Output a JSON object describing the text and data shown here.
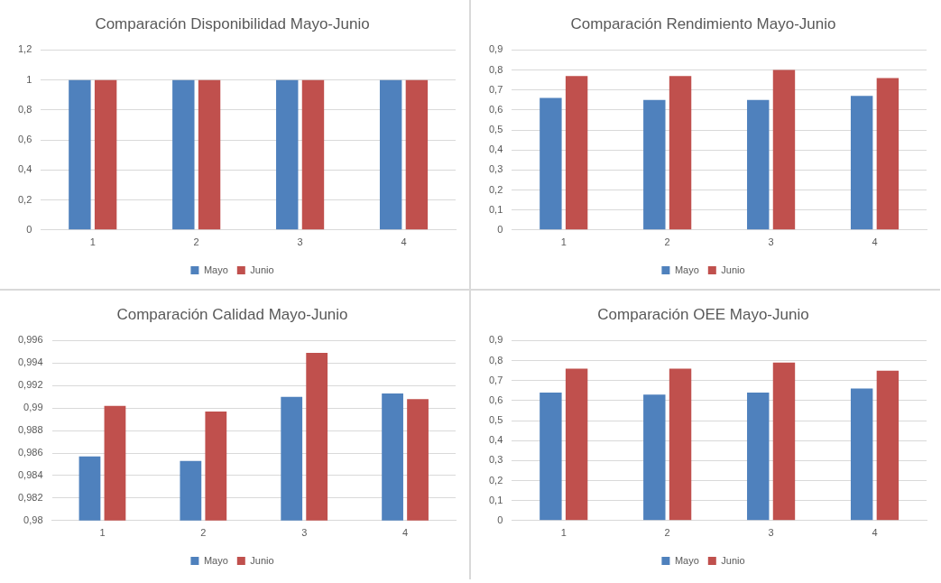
{
  "chart_data": [
    {
      "type": "bar",
      "title": "Comparación Disponibilidad Mayo-Junio",
      "categories": [
        "1",
        "2",
        "3",
        "4"
      ],
      "series": [
        {
          "name": "Mayo",
          "color": "#4f81bd",
          "values": [
            1,
            1,
            1,
            1
          ]
        },
        {
          "name": "Junio",
          "color": "#c0504d",
          "values": [
            1,
            1,
            1,
            1
          ]
        }
      ],
      "ylim": [
        0,
        1.2
      ],
      "yticks": [
        {
          "value": 0,
          "label": "0"
        },
        {
          "value": 0.2,
          "label": "0,2"
        },
        {
          "value": 0.4,
          "label": "0,4"
        },
        {
          "value": 0.6,
          "label": "0,6"
        },
        {
          "value": 0.8,
          "label": "0,8"
        },
        {
          "value": 1,
          "label": "1"
        },
        {
          "value": 1.2,
          "label": "1,2"
        }
      ],
      "grid": "y",
      "legend": "bottom"
    },
    {
      "type": "bar",
      "title": "Comparación Rendimiento Mayo-Junio",
      "categories": [
        "1",
        "2",
        "3",
        "4"
      ],
      "series": [
        {
          "name": "Mayo",
          "color": "#4f81bd",
          "values": [
            0.66,
            0.65,
            0.65,
            0.67
          ]
        },
        {
          "name": "Junio",
          "color": "#c0504d",
          "values": [
            0.77,
            0.77,
            0.8,
            0.76
          ]
        }
      ],
      "ylim": [
        0,
        0.9
      ],
      "yticks": [
        {
          "value": 0,
          "label": "0"
        },
        {
          "value": 0.1,
          "label": "0,1"
        },
        {
          "value": 0.2,
          "label": "0,2"
        },
        {
          "value": 0.3,
          "label": "0,3"
        },
        {
          "value": 0.4,
          "label": "0,4"
        },
        {
          "value": 0.5,
          "label": "0,5"
        },
        {
          "value": 0.6,
          "label": "0,6"
        },
        {
          "value": 0.7,
          "label": "0,7"
        },
        {
          "value": 0.8,
          "label": "0,8"
        },
        {
          "value": 0.9,
          "label": "0,9"
        }
      ],
      "grid": "y",
      "legend": "bottom"
    },
    {
      "type": "bar",
      "title": "Comparación Calidad Mayo-Junio",
      "categories": [
        "1",
        "2",
        "3",
        "4"
      ],
      "series": [
        {
          "name": "Mayo",
          "color": "#4f81bd",
          "values": [
            0.9857,
            0.9853,
            0.991,
            0.9913
          ]
        },
        {
          "name": "Junio",
          "color": "#c0504d",
          "values": [
            0.9902,
            0.9897,
            0.9949,
            0.9908
          ]
        }
      ],
      "ylim": [
        0.98,
        0.996
      ],
      "yticks": [
        {
          "value": 0.98,
          "label": "0,98"
        },
        {
          "value": 0.982,
          "label": "0,982"
        },
        {
          "value": 0.984,
          "label": "0,984"
        },
        {
          "value": 0.986,
          "label": "0,986"
        },
        {
          "value": 0.988,
          "label": "0,988"
        },
        {
          "value": 0.99,
          "label": "0,99"
        },
        {
          "value": 0.992,
          "label": "0,992"
        },
        {
          "value": 0.994,
          "label": "0,994"
        },
        {
          "value": 0.996,
          "label": "0,996"
        }
      ],
      "grid": "y",
      "legend": "bottom"
    },
    {
      "type": "bar",
      "title": "Comparación OEE Mayo-Junio",
      "categories": [
        "1",
        "2",
        "3",
        "4"
      ],
      "series": [
        {
          "name": "Mayo",
          "color": "#4f81bd",
          "values": [
            0.64,
            0.63,
            0.64,
            0.66
          ]
        },
        {
          "name": "Junio",
          "color": "#c0504d",
          "values": [
            0.76,
            0.76,
            0.79,
            0.75
          ]
        }
      ],
      "ylim": [
        0,
        0.9
      ],
      "yticks": [
        {
          "value": 0,
          "label": "0"
        },
        {
          "value": 0.1,
          "label": "0,1"
        },
        {
          "value": 0.2,
          "label": "0,2"
        },
        {
          "value": 0.3,
          "label": "0,3"
        },
        {
          "value": 0.4,
          "label": "0,4"
        },
        {
          "value": 0.5,
          "label": "0,5"
        },
        {
          "value": 0.6,
          "label": "0,6"
        },
        {
          "value": 0.7,
          "label": "0,7"
        },
        {
          "value": 0.8,
          "label": "0,8"
        },
        {
          "value": 0.9,
          "label": "0,9"
        }
      ],
      "grid": "y",
      "legend": "bottom"
    }
  ]
}
